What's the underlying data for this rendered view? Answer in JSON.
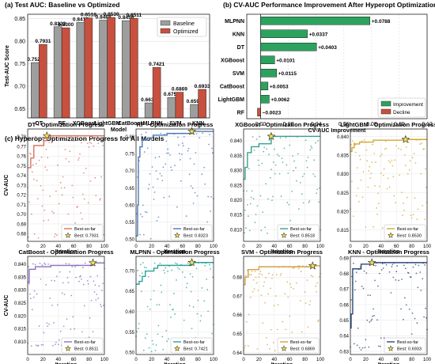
{
  "chart_data": [
    {
      "panel": "a",
      "type": "bar",
      "title": "(a) Test AUC: Baseline vs Optimized",
      "xlabel": "Model",
      "ylabel": "Test-AUC Score",
      "ylim": [
        0.63,
        0.86
      ],
      "yticks": [
        "0.65",
        "0.70",
        "0.75",
        "0.80",
        "0.85"
      ],
      "categories": [
        "DT",
        "RF",
        "XGBoost",
        "LightGBM",
        "CatBoost",
        "MLPNN",
        "SVM",
        "KNN"
      ],
      "series": [
        {
          "name": "Baseline",
          "values": [
            0.7528,
            0.8323,
            0.8417,
            0.8468,
            0.8458,
            0.6633,
            0.6754,
            0.6598
          ],
          "labels": [
            "0.7528",
            "0.8323",
            "0.8417",
            "0.8468",
            "0.8458",
            "0.6633",
            "0.6754",
            "0.6598"
          ],
          "color": "#9e9e9e"
        },
        {
          "name": "Optimized",
          "values": [
            0.7931,
            0.83,
            0.8518,
            0.853,
            0.8511,
            0.7421,
            0.6869,
            0.6933
          ],
          "labels": [
            "0.7931",
            "0.8300",
            "0.8518",
            "0.8530",
            "0.8511",
            "0.7421",
            "0.6869",
            "0.6933"
          ],
          "color": "#c8503e"
        }
      ],
      "legend_position": "top-right",
      "grid": true
    },
    {
      "panel": "b",
      "type": "bar",
      "orientation": "horizontal",
      "title": "(b) CV-AUC Performance Improvement After Hyperopt Optimization",
      "xlabel": "CV-AUC Improvement",
      "xlim": [
        -0.01,
        0.12
      ],
      "xticks": [
        "0.00",
        "0.02",
        "0.04",
        "0.06",
        "0.08",
        "0.10",
        "0.12"
      ],
      "categories": [
        "MLPNN",
        "KNN",
        "DT",
        "XGBoost",
        "SVM",
        "CatBoost",
        "LightGBM",
        "RF"
      ],
      "values": [
        0.0788,
        0.0337,
        0.0403,
        0.0101,
        0.0115,
        0.0053,
        0.0062,
        -0.0023
      ],
      "labels": [
        "+0.0788",
        "+0.0337",
        "+0.0403",
        "+0.0101",
        "+0.0115",
        "+0.0053",
        "+0.0062",
        "−0.0023"
      ],
      "legend": [
        {
          "name": "Improvement",
          "color": "#2ca25f"
        },
        {
          "name": "Decline",
          "color": "#c8503e"
        }
      ],
      "legend_position": "bottom-right",
      "grid": true
    },
    {
      "panel": "c",
      "type": "scatter",
      "title": "(c) Hyperopt Optimization Progress for All Models",
      "xlabel": "Iteration",
      "ylabel": "CV-AUC",
      "xlim": [
        0,
        100
      ],
      "xticks": [
        "0",
        "20",
        "40",
        "60",
        "80",
        "100"
      ],
      "subplots": [
        {
          "title": "DT - Optimization Progress",
          "color": "#d9735e",
          "ylim": [
            0.672,
            0.788
          ],
          "yticks": [
            0.68,
            0.69,
            0.7,
            0.71,
            0.72,
            0.73,
            0.74,
            0.75,
            0.76,
            0.77,
            0.78
          ],
          "best_iter": 25,
          "best_value": 0.7931,
          "best_label": "Best: 0.7931",
          "best_so_far": [
            [
              0,
              0.748
            ],
            [
              4,
              0.758
            ],
            [
              7,
              0.758
            ],
            [
              8,
              0.771
            ],
            [
              20,
              0.771
            ],
            [
              21,
              0.776
            ],
            [
              24,
              0.776
            ],
            [
              25,
              0.781
            ],
            [
              100,
              0.781
            ]
          ],
          "floor": 0.675,
          "spread": 0.09,
          "seed": 11
        },
        {
          "title": "RF - Optimization Progress",
          "color": "#4a79b8",
          "ylim": [
            0.494,
            0.822
          ],
          "yticks": [
            0.5,
            0.55,
            0.6,
            0.65,
            0.7,
            0.75,
            0.8
          ],
          "best_iter": 72,
          "best_value": 0.8323,
          "best_label": "Best: 0.8323",
          "best_so_far": [
            [
              0,
              0.51
            ],
            [
              2,
              0.6
            ],
            [
              3,
              0.74
            ],
            [
              5,
              0.77
            ],
            [
              8,
              0.79
            ],
            [
              15,
              0.796
            ],
            [
              22,
              0.804
            ],
            [
              40,
              0.809
            ],
            [
              72,
              0.815
            ],
            [
              100,
              0.815
            ]
          ],
          "floor": 0.5,
          "spread": 0.08,
          "seed": 23
        },
        {
          "title": "XGBoost - Optimization Progress",
          "color": "#36a38c",
          "ylim": [
            0.806,
            0.844
          ],
          "yticks": [
            0.81,
            0.815,
            0.82,
            0.825,
            0.83,
            0.835,
            0.84
          ],
          "best_iter": 36,
          "best_value": 0.8518,
          "best_label": "Best: 0.8518",
          "best_so_far": [
            [
              0,
              0.827
            ],
            [
              2,
              0.831
            ],
            [
              5,
              0.836
            ],
            [
              10,
              0.838
            ],
            [
              20,
              0.839
            ],
            [
              36,
              0.8415
            ],
            [
              100,
              0.8415
            ]
          ],
          "floor": 0.808,
          "spread": 0.012,
          "seed": 37
        },
        {
          "title": "LightGBM - Optimization Progress",
          "color": "#d4a72c",
          "ylim": [
            0.812,
            0.842
          ],
          "yticks": [
            0.815,
            0.82,
            0.825,
            0.83,
            0.835,
            0.84
          ],
          "best_iter": 72,
          "best_value": 0.853,
          "best_label": "Best: 0.8530",
          "best_so_far": [
            [
              0,
              0.836
            ],
            [
              2,
              0.837
            ],
            [
              5,
              0.838
            ],
            [
              12,
              0.8385
            ],
            [
              30,
              0.839
            ],
            [
              72,
              0.8392
            ],
            [
              100,
              0.8392
            ]
          ],
          "floor": 0.815,
          "spread": 0.01,
          "seed": 41
        },
        {
          "title": "CatBoost - Optimization Progress",
          "color": "#8e6fc1",
          "ylim": [
            0.805,
            0.843
          ],
          "yticks": [
            0.81,
            0.815,
            0.82,
            0.825,
            0.83,
            0.835,
            0.84
          ],
          "best_iter": 85,
          "best_value": 0.8511,
          "best_label": "Best: 0.8511",
          "best_so_far": [
            [
              0,
              0.833
            ],
            [
              2,
              0.838
            ],
            [
              10,
              0.839
            ],
            [
              30,
              0.8395
            ],
            [
              85,
              0.8405
            ],
            [
              100,
              0.8405
            ]
          ],
          "floor": 0.808,
          "spread": 0.012,
          "seed": 53
        },
        {
          "title": "MLPNN - Optimization Progress",
          "color": "#2aa39a",
          "ylim": [
            0.495,
            0.735
          ],
          "yticks": [
            0.5,
            0.55,
            0.6,
            0.65,
            0.7
          ],
          "best_iter": 72,
          "best_value": 0.7421,
          "best_label": "Best: 0.7421",
          "best_so_far": [
            [
              0,
              0.667
            ],
            [
              4,
              0.674
            ],
            [
              8,
              0.686
            ],
            [
              12,
              0.699
            ],
            [
              23,
              0.706
            ],
            [
              28,
              0.713
            ],
            [
              72,
              0.72
            ],
            [
              100,
              0.72
            ]
          ],
          "floor": 0.5,
          "spread": 0.06,
          "seed": 67
        },
        {
          "title": "SVM - Optimization Progress",
          "color": "#d4a042",
          "ylim": [
            0.639,
            0.691
          ],
          "yticks": [
            0.64,
            0.65,
            0.66,
            0.67,
            0.68
          ],
          "best_iter": 90,
          "best_value": 0.6869,
          "best_label": "Best: 0.6869",
          "best_so_far": [
            [
              0,
              0.676
            ],
            [
              2,
              0.68
            ],
            [
              6,
              0.684
            ],
            [
              20,
              0.6855
            ],
            [
              90,
              0.686
            ],
            [
              100,
              0.686
            ]
          ],
          "floor": 0.641,
          "spread": 0.015,
          "seed": 71
        },
        {
          "title": "KNN - Optimization Progress",
          "color": "#2d4a7a",
          "ylim": [
            0.628,
            0.691
          ],
          "yticks": [
            0.63,
            0.64,
            0.65,
            0.66,
            0.67,
            0.68,
            0.69
          ],
          "best_iter": 28,
          "best_value": 0.6933,
          "best_label": "Best: 0.6933",
          "best_so_far": [
            [
              0,
              0.645
            ],
            [
              1,
              0.654
            ],
            [
              3,
              0.683
            ],
            [
              14,
              0.686
            ],
            [
              28,
              0.687
            ],
            [
              100,
              0.687
            ]
          ],
          "floor": 0.631,
          "spread": 0.018,
          "seed": 83
        }
      ],
      "legend_entry": "Best-so-far"
    }
  ]
}
